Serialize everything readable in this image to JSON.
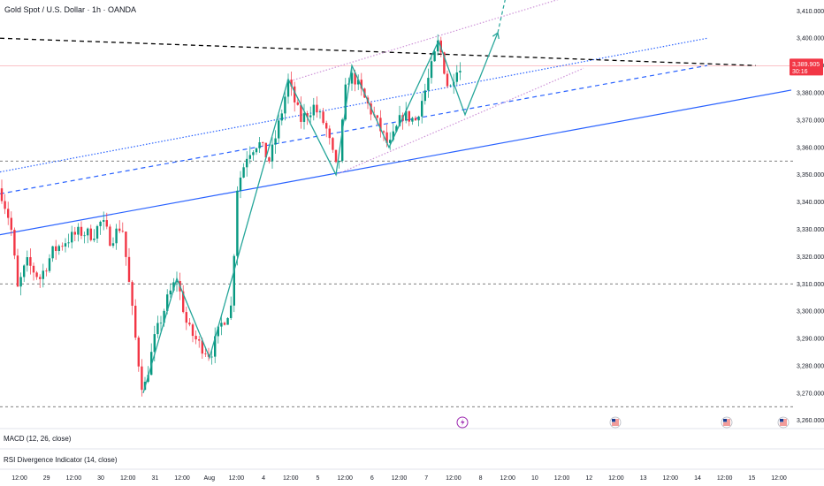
{
  "title": "Gold Spot / U.S. Dollar · 1h · OANDA",
  "indicators": [
    "MACD (12, 26, close)",
    "RSI Divergence Indicator (14, close)"
  ],
  "price_tag": {
    "price": "3,389.905",
    "countdown": "30:16",
    "color": "#f23645"
  },
  "colors": {
    "bull": "#089981",
    "bear": "#f23645",
    "pattern": "#26a69a",
    "trend": "#2962ff",
    "channel": "#ce93d8"
  },
  "chart_data": {
    "type": "candlestick",
    "symbol": "XAUUSD",
    "timeframe": "1h",
    "ylim": [
      3257,
      3414
    ],
    "y_ticks": [
      3260,
      3270,
      3280,
      3290,
      3300,
      3310,
      3320,
      3330,
      3340,
      3350,
      3360,
      3370,
      3380,
      3390,
      3400,
      3410
    ],
    "x_ticks": [
      "12:00",
      "29",
      "12:00",
      "30",
      "12:00",
      "31",
      "12:00",
      "Aug",
      "12:00",
      "4",
      "12:00",
      "5",
      "12:00",
      "6",
      "12:00",
      "7",
      "12:00",
      "8",
      "12:00",
      "10",
      "12:00",
      "12",
      "12:00",
      "13",
      "12:00",
      "14",
      "12:00",
      "15",
      "12:00"
    ],
    "horizontal_levels": [
      3355,
      3310,
      3265
    ],
    "current_price": 3389.905,
    "price_path": [
      {
        "t": 0,
        "p": 3345
      },
      {
        "t": 12,
        "p": 3332
      },
      {
        "t": 20,
        "p": 3308
      },
      {
        "t": 30,
        "p": 3318
      },
      {
        "t": 45,
        "p": 3312
      },
      {
        "t": 60,
        "p": 3322
      },
      {
        "t": 75,
        "p": 3326
      },
      {
        "t": 90,
        "p": 3329
      },
      {
        "t": 105,
        "p": 3328
      },
      {
        "t": 115,
        "p": 3333
      },
      {
        "t": 125,
        "p": 3326
      },
      {
        "t": 138,
        "p": 3332
      },
      {
        "t": 146,
        "p": 3310
      },
      {
        "t": 155,
        "p": 3285
      },
      {
        "t": 162,
        "p": 3270
      },
      {
        "t": 175,
        "p": 3290
      },
      {
        "t": 190,
        "p": 3305
      },
      {
        "t": 200,
        "p": 3312
      },
      {
        "t": 212,
        "p": 3294
      },
      {
        "t": 225,
        "p": 3288
      },
      {
        "t": 238,
        "p": 3284
      },
      {
        "t": 250,
        "p": 3295
      },
      {
        "t": 262,
        "p": 3302
      },
      {
        "t": 268,
        "p": 3345
      },
      {
        "t": 280,
        "p": 3358
      },
      {
        "t": 292,
        "p": 3362
      },
      {
        "t": 305,
        "p": 3355
      },
      {
        "t": 318,
        "p": 3372
      },
      {
        "t": 326,
        "p": 3384
      },
      {
        "t": 340,
        "p": 3370
      },
      {
        "t": 355,
        "p": 3375
      },
      {
        "t": 368,
        "p": 3368
      },
      {
        "t": 382,
        "p": 3350
      },
      {
        "t": 392,
        "p": 3385
      },
      {
        "t": 400,
        "p": 3386
      },
      {
        "t": 412,
        "p": 3378
      },
      {
        "t": 425,
        "p": 3370
      },
      {
        "t": 440,
        "p": 3360
      },
      {
        "t": 455,
        "p": 3372
      },
      {
        "t": 470,
        "p": 3370
      },
      {
        "t": 482,
        "p": 3382
      },
      {
        "t": 496,
        "p": 3399
      },
      {
        "t": 508,
        "p": 3380
      },
      {
        "t": 516,
        "p": 3390
      },
      {
        "t": 522,
        "p": 3388
      }
    ],
    "pattern_zigzag": [
      {
        "t": 162,
        "p": 3270
      },
      {
        "t": 200,
        "p": 3312
      },
      {
        "t": 237,
        "p": 3283
      },
      {
        "t": 326,
        "p": 3385
      },
      {
        "t": 380,
        "p": 3350
      },
      {
        "t": 398,
        "p": 3390
      },
      {
        "t": 440,
        "p": 3360
      },
      {
        "t": 496,
        "p": 3399
      },
      {
        "t": 526,
        "p": 3372
      },
      {
        "t": 563,
        "p": 3402
      }
    ],
    "projection_extension": [
      {
        "t": 563,
        "p": 3402
      },
      {
        "t": 574,
        "p": 3418
      }
    ],
    "trendlines": [
      {
        "style": "solid",
        "color": "#2962ff",
        "from": {
          "t": 0,
          "p": 3328
        },
        "to": {
          "t": 895,
          "p": 3381
        }
      },
      {
        "style": "dashed",
        "color": "#2962ff",
        "from": {
          "t": 0,
          "p": 3343
        },
        "to": {
          "t": 800,
          "p": 3390
        }
      },
      {
        "style": "dotted",
        "color": "#2962ff",
        "from": {
          "t": 0,
          "p": 3351
        },
        "to": {
          "t": 800,
          "p": 3400
        }
      },
      {
        "style": "dashed",
        "color": "#000000",
        "from": {
          "t": 0,
          "p": 3400
        },
        "to": {
          "t": 855,
          "p": 3390
        }
      },
      {
        "style": "dotted",
        "color": "#ce93d8",
        "from": {
          "t": 325,
          "p": 3384
        },
        "to": {
          "t": 660,
          "p": 3417
        }
      },
      {
        "style": "dotted",
        "color": "#ce93d8",
        "from": {
          "t": 380,
          "p": 3350
        },
        "to": {
          "t": 660,
          "p": 3389
        }
      }
    ],
    "price_line": 3389.905,
    "event_markers": [
      {
        "t": 523,
        "type": "earnings"
      },
      {
        "t": 696,
        "type": "us-flag"
      },
      {
        "t": 822,
        "type": "us-flag"
      },
      {
        "t": 886,
        "type": "us-flag"
      }
    ]
  }
}
